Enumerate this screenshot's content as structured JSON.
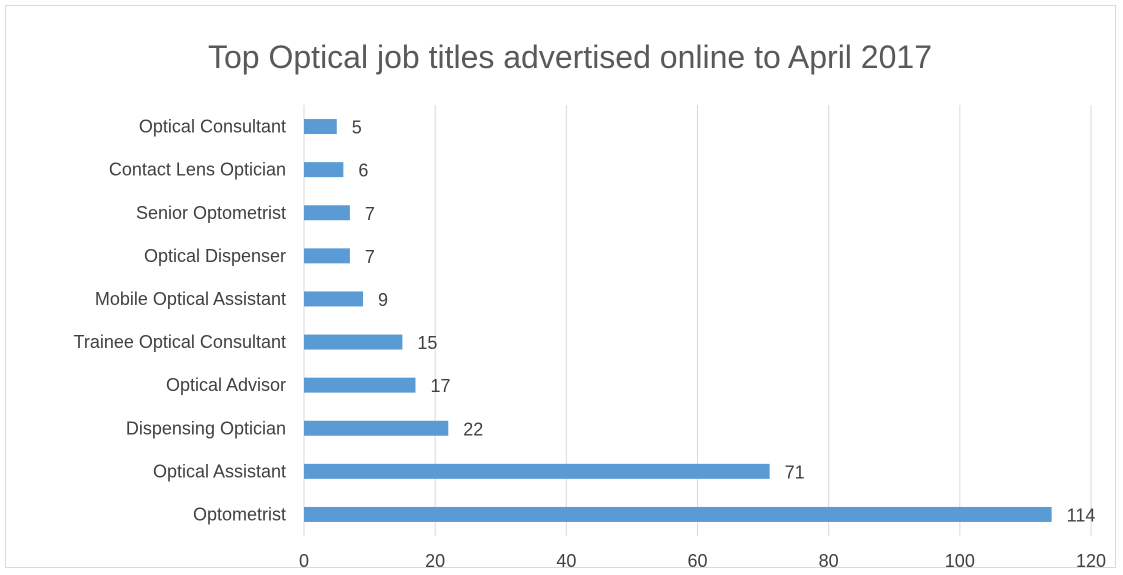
{
  "chart_data": {
    "type": "bar",
    "orientation": "horizontal",
    "title": "Top Optical job titles advertised online to April 2017",
    "categories": [
      "Optical Consultant",
      "Contact Lens Optician",
      "Senior Optometrist",
      "Optical Dispenser",
      "Mobile Optical Assistant",
      "Trainee Optical Consultant",
      "Optical Advisor",
      "Dispensing Optician",
      "Optical Assistant",
      "Optometrist"
    ],
    "values": [
      5,
      6,
      7,
      7,
      9,
      15,
      17,
      22,
      71,
      114
    ],
    "xlim": [
      0,
      120
    ],
    "xticks": [
      0,
      20,
      40,
      60,
      80,
      100,
      120
    ],
    "grid": "vertical",
    "data_labels": true,
    "bar_color": "#5b9bd5",
    "gridline_color": "#d9d9d9",
    "text_color": "#404040"
  }
}
